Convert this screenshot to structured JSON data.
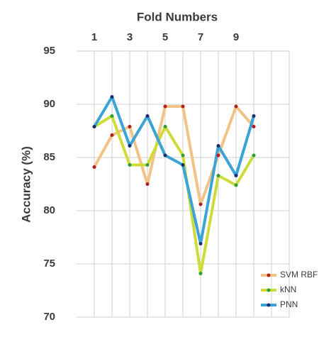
{
  "chart_data": {
    "type": "line",
    "x_label": "Fold Numbers",
    "y_label": "Accuracy (%)",
    "x": [
      1,
      2,
      3,
      4,
      5,
      6,
      7,
      8,
      9,
      10
    ],
    "xlim": [
      0,
      12
    ],
    "xticks": [
      1,
      3,
      5,
      7,
      9
    ],
    "x_minor_grid": [
      2,
      4,
      6,
      8,
      10,
      11,
      12
    ],
    "ylim": [
      70,
      95
    ],
    "yticks": [
      70,
      75,
      80,
      85,
      90,
      95
    ],
    "grid": true,
    "x_axis_position": "top",
    "legend": "lower right",
    "series": [
      {
        "name": "SVM RBF",
        "color": "#f2c386",
        "marker_color": "#b01e1e",
        "values": [
          84.1,
          87.1,
          87.9,
          82.5,
          89.8,
          89.8,
          80.6,
          85.2,
          89.8,
          87.9
        ]
      },
      {
        "name": "kNN",
        "color": "#cddc39",
        "marker_color": "#2e9e3a",
        "values": [
          87.9,
          88.9,
          84.3,
          84.3,
          87.9,
          85.2,
          74.1,
          83.3,
          82.4,
          85.2
        ]
      },
      {
        "name": "PNN",
        "color": "#3ba3d6",
        "marker_color": "#1c2e6e",
        "values": [
          87.9,
          90.7,
          86.1,
          88.9,
          85.2,
          84.3,
          76.9,
          86.1,
          83.3,
          88.9
        ]
      }
    ]
  }
}
